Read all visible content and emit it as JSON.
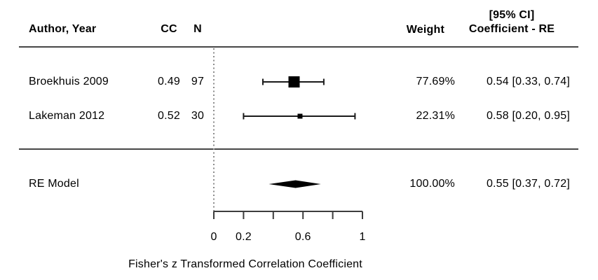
{
  "table": {
    "header": {
      "author": "Author, Year",
      "cc": "CC",
      "n": "N",
      "weight": "Weight",
      "ci_line1": "[95% CI]",
      "ci_line2": "Coefficient - RE"
    },
    "rows": [
      {
        "author": "Broekhuis 2009",
        "cc": "0.49",
        "n": "97",
        "weight": "77.69%",
        "estimate_label": "0.54 [0.33, 0.74]"
      },
      {
        "author": "Lakeman 2012",
        "cc": "0.52",
        "n": "30",
        "weight": "22.31%",
        "estimate_label": "0.58 [0.20, 0.95]"
      }
    ],
    "summary": {
      "label": "RE Model",
      "weight": "100.00%",
      "estimate_label": "0.55 [0.37, 0.72]"
    }
  },
  "chart_data": {
    "type": "forest",
    "studies": [
      {
        "label": "Broekhuis 2009",
        "cc": 0.49,
        "n": 97,
        "estimate": 0.54,
        "ci_low": 0.33,
        "ci_high": 0.74,
        "weight_pct": 77.69
      },
      {
        "label": "Lakeman 2012",
        "cc": 0.52,
        "n": 30,
        "estimate": 0.58,
        "ci_low": 0.2,
        "ci_high": 0.95,
        "weight_pct": 22.31
      }
    ],
    "summary": {
      "label": "RE Model",
      "estimate": 0.55,
      "ci_low": 0.37,
      "ci_high": 0.72,
      "weight_pct": 100.0
    },
    "xlabel": "Fisher's z Transformed Correlation Coefficient",
    "xlim": [
      0,
      1
    ],
    "x_ticks": [
      0,
      0.2,
      0.4,
      0.6,
      0.8,
      1
    ],
    "x_tick_labels": [
      "0",
      "0.2",
      "",
      "0.6",
      "",
      "1"
    ],
    "reference_line_x": 0,
    "colors": {
      "marker": "#000000",
      "ci_line": "#1a1a1a",
      "axis": "#3d3d3d",
      "rule": "#474747",
      "dotted": "#8c8c8c",
      "text": "#000000"
    }
  }
}
